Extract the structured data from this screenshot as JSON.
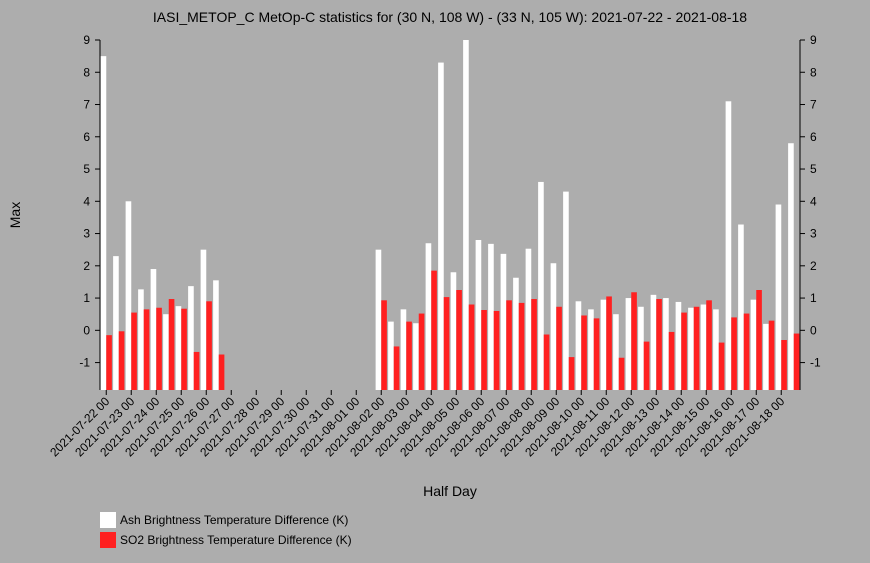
{
  "chart_data": {
    "type": "bar",
    "title": "IASI_METOP_C MetOp-C statistics for (30 N, 108 W) - (33 N, 105 W): 2021-07-22 - 2021-08-18",
    "x_label": "Half Day",
    "y_label": "Max",
    "categories": [
      "2021-07-22 00",
      null,
      "2021-07-23 00",
      null,
      "2021-07-24 00",
      null,
      "2021-07-25 00",
      null,
      "2021-07-26 00",
      null,
      "2021-07-27 00",
      null,
      "2021-07-28 00",
      null,
      "2021-07-29 00",
      null,
      "2021-07-30 00",
      null,
      "2021-07-31 00",
      null,
      "2021-08-01 00",
      null,
      "2021-08-02 00",
      null,
      "2021-08-03 00",
      null,
      "2021-08-04 00",
      null,
      "2021-08-05 00",
      null,
      "2021-08-06 00",
      null,
      "2021-08-07 00",
      null,
      "2021-08-08 00",
      null,
      "2021-08-09 00",
      null,
      "2021-08-10 00",
      null,
      "2021-08-11 00",
      null,
      "2021-08-12 00",
      null,
      "2021-08-13 00",
      null,
      "2021-08-14 00",
      null,
      "2021-08-15 00",
      null,
      "2021-08-16 00",
      null,
      "2021-08-17 00",
      null,
      "2021-08-18 00",
      null
    ],
    "series": [
      {
        "name": "Ash Brightness Temperature Difference (K)",
        "color": "#ffffff",
        "values": [
          8.5,
          2.3,
          4.0,
          1.27,
          1.9,
          0.5,
          0.75,
          1.37,
          2.5,
          1.55,
          null,
          null,
          null,
          null,
          null,
          null,
          null,
          null,
          null,
          null,
          null,
          null,
          2.5,
          0.27,
          0.65,
          0.22,
          2.7,
          8.3,
          1.8,
          9.0,
          2.8,
          2.68,
          2.37,
          1.63,
          2.53,
          4.6,
          2.08,
          4.3,
          0.9,
          0.65,
          0.95,
          0.5,
          1.0,
          0.73,
          1.1,
          1.0,
          0.88,
          0.7,
          0.8,
          0.65,
          7.1,
          3.28,
          0.95,
          0.2,
          3.9,
          5.8
        ]
      },
      {
        "name": "SO2 Brightness Temperature Difference (K)",
        "color": "#ff2020",
        "values": [
          -0.15,
          -0.03,
          0.55,
          0.65,
          0.7,
          0.97,
          0.67,
          -0.67,
          0.9,
          -0.75,
          null,
          null,
          null,
          null,
          null,
          null,
          null,
          null,
          null,
          null,
          null,
          null,
          0.93,
          -0.5,
          0.27,
          0.52,
          1.85,
          1.03,
          1.25,
          0.8,
          0.63,
          0.6,
          0.93,
          0.85,
          0.97,
          -0.13,
          0.73,
          -0.83,
          0.46,
          0.37,
          1.05,
          -0.85,
          1.18,
          -0.35,
          0.97,
          -0.05,
          0.55,
          0.73,
          0.93,
          -0.38,
          0.4,
          0.52,
          1.25,
          0.3,
          -0.3,
          -0.1
        ]
      }
    ],
    "ylim": [
      -1.85,
      9
    ],
    "yticks": [
      -1,
      0,
      1,
      2,
      3,
      4,
      5,
      6,
      7,
      8,
      9
    ]
  }
}
